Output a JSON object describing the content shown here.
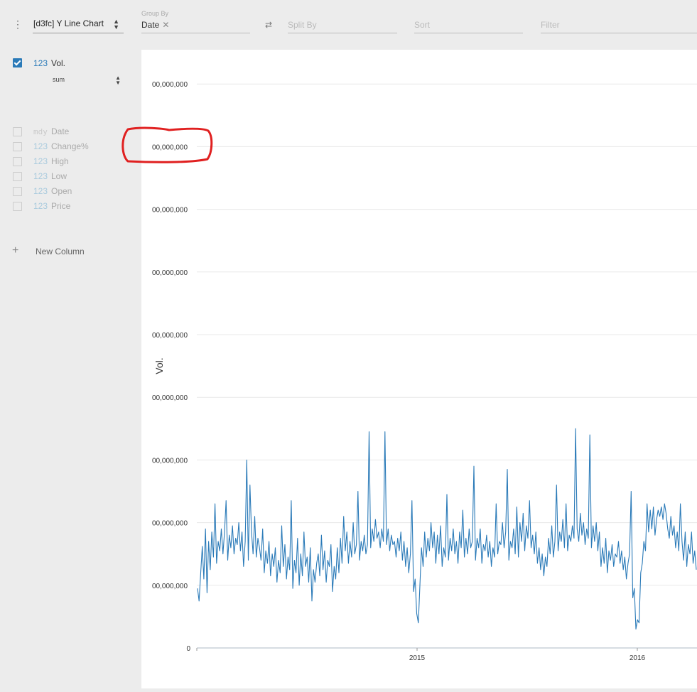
{
  "toolbar": {
    "menu_icon": "vertical-ellipsis-icon",
    "plugin": "[d3fc] Y Line Chart",
    "group_by": {
      "caption": "Group By",
      "value": "Date"
    },
    "swap_icon": "swap-arrows-icon",
    "split_by": {
      "placeholder": "Split By"
    },
    "sort": {
      "placeholder": "Sort"
    },
    "filter": {
      "placeholder": "Filter"
    }
  },
  "sidebar": {
    "active_columns": [
      {
        "type": "123",
        "name": "Vol.",
        "checked": true,
        "aggregate": "sum"
      }
    ],
    "inactive_columns": [
      {
        "type": "mdy",
        "name": "Date"
      },
      {
        "type": "123",
        "name": "Change%"
      },
      {
        "type": "123",
        "name": "High"
      },
      {
        "type": "123",
        "name": "Low"
      },
      {
        "type": "123",
        "name": "Open"
      },
      {
        "type": "123",
        "name": "Price"
      }
    ],
    "new_column": "New Column"
  },
  "chart_data": {
    "type": "line",
    "ylabel": "Vol.",
    "y_ticks": [
      "0",
      "00,000,000",
      "00,000,000",
      "00,000,000",
      "00,000,000",
      "00,000,000",
      "00,000,000",
      "00,000,000",
      "00,000,000",
      "00,000,000"
    ],
    "x_ticks": [
      "2015",
      "2016"
    ],
    "grid": true,
    "series": [
      {
        "color": "#2a7ab8",
        "values": [
          0.95,
          0.75,
          1.2,
          1.62,
          1.1,
          1.9,
          0.88,
          1.7,
          1.25,
          1.85,
          1.45,
          2.3,
          1.35,
          1.7,
          1.55,
          1.9,
          1.5,
          1.85,
          2.35,
          1.4,
          1.8,
          1.6,
          1.95,
          1.5,
          1.75,
          1.65,
          2.0,
          1.55,
          1.85,
          1.3,
          1.7,
          3.0,
          1.4,
          2.6,
          1.85,
          1.5,
          2.1,
          1.45,
          1.75,
          1.6,
          1.4,
          1.9,
          1.2,
          1.55,
          1.35,
          1.7,
          1.15,
          1.5,
          1.3,
          1.6,
          1.05,
          1.4,
          1.2,
          1.95,
          1.3,
          1.65,
          1.1,
          1.45,
          1.25,
          2.35,
          0.95,
          1.4,
          1.2,
          1.75,
          1.0,
          1.5,
          1.15,
          1.85,
          1.3,
          1.45,
          1.05,
          1.6,
          0.75,
          1.25,
          1.05,
          1.35,
          1.5,
          1.15,
          1.8,
          1.25,
          1.55,
          1.05,
          1.4,
          1.3,
          1.65,
          0.9,
          1.3,
          1.1,
          1.6,
          1.2,
          1.75,
          1.35,
          2.1,
          1.55,
          1.85,
          1.35,
          1.7,
          1.45,
          2.0,
          1.5,
          1.65,
          2.5,
          1.4,
          1.7,
          1.55,
          1.8,
          1.5,
          1.65,
          3.45,
          1.6,
          1.9,
          1.7,
          2.05,
          1.75,
          1.85,
          1.6,
          1.9,
          1.7,
          3.45,
          1.65,
          1.9,
          1.55,
          1.8,
          1.65,
          1.7,
          1.45,
          1.75,
          1.55,
          1.85,
          1.4,
          1.7,
          1.3,
          1.6,
          1.2,
          1.5,
          2.35,
          0.9,
          1.1,
          0.55,
          0.4,
          1.0,
          1.6,
          1.3,
          1.85,
          1.45,
          1.75,
          1.55,
          2.0,
          1.6,
          1.85,
          1.35,
          1.8,
          1.5,
          1.95,
          1.3,
          1.6,
          1.45,
          2.45,
          1.4,
          1.75,
          1.55,
          1.9,
          1.5,
          1.7,
          1.35,
          1.85,
          1.6,
          2.2,
          1.45,
          1.75,
          1.5,
          1.9,
          1.6,
          1.7,
          2.9,
          1.4,
          1.75,
          1.6,
          1.9,
          1.35,
          1.65,
          1.55,
          1.8,
          1.45,
          1.7,
          1.3,
          1.6,
          1.45,
          2.3,
          1.5,
          1.7,
          1.65,
          2.0,
          1.6,
          1.85,
          2.85,
          1.4,
          1.7,
          1.6,
          1.9,
          1.5,
          2.25,
          1.45,
          2.0,
          1.7,
          2.15,
          1.55,
          1.95,
          1.75,
          2.35,
          1.6,
          1.8,
          1.5,
          1.85,
          1.35,
          1.6,
          1.25,
          1.5,
          1.15,
          1.45,
          1.3,
          1.75,
          1.5,
          1.95,
          1.45,
          1.7,
          2.6,
          1.55,
          1.85,
          1.7,
          2.05,
          1.6,
          2.3,
          1.55,
          1.8,
          1.7,
          1.95,
          1.75,
          3.5,
          1.9,
          1.7,
          2.15,
          1.8,
          2.0,
          1.65,
          1.9,
          1.75,
          3.4,
          1.6,
          1.95,
          1.7,
          2.0,
          1.55,
          1.85,
          1.3,
          1.6,
          1.35,
          1.75,
          1.2,
          1.55,
          1.4,
          1.65,
          1.3,
          1.5,
          1.45,
          1.7,
          1.35,
          1.55,
          1.25,
          1.45,
          1.1,
          1.35,
          1.5,
          2.5,
          0.8,
          0.95,
          0.3,
          0.45,
          0.4,
          1.2,
          1.35,
          1.7,
          1.55,
          2.3,
          1.85,
          2.2,
          1.9,
          2.25,
          1.8,
          2.05,
          2.2,
          2.1,
          2.25,
          2.05,
          2.3,
          2.15,
          1.9,
          1.75,
          2.1,
          1.8,
          1.95,
          1.6,
          1.85,
          1.55,
          2.3,
          1.7,
          1.4,
          1.85,
          1.3,
          1.65,
          1.5,
          1.85,
          1.35,
          1.55,
          1.25
        ]
      }
    ]
  }
}
